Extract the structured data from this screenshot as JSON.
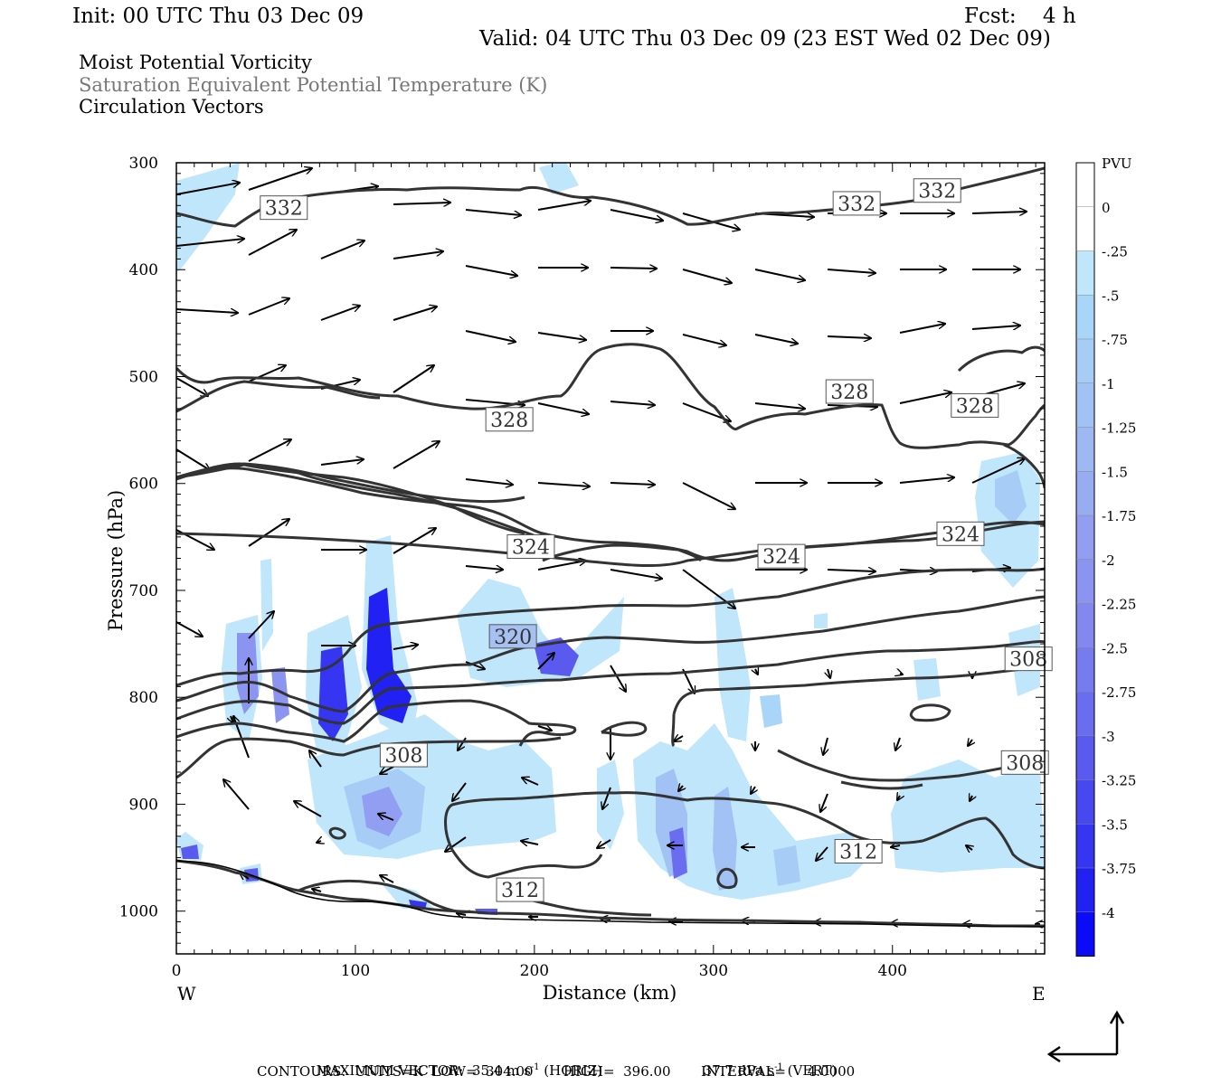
{
  "header": {
    "init": "Init: 00 UTC Thu 03 Dec 09",
    "fcst": "Fcst:    4 h",
    "valid": "Valid: 04 UTC Thu 03 Dec 09 (23 EST Wed 02 Dec 09)"
  },
  "titles": [
    "Moist Potential Vorticity",
    "Saturation Equivalent Potential Temperature (K)",
    "Circulation Vectors"
  ],
  "chart_data": {
    "type": "cross-section",
    "xlabel": "Distance (km)",
    "ylabel": "Pressure (hPa)",
    "xlim": [
      0,
      485
    ],
    "ylim": [
      300,
      1040
    ],
    "x_ticks": [
      0,
      100,
      200,
      300,
      400
    ],
    "y_ticks": [
      300,
      400,
      500,
      600,
      700,
      800,
      900,
      1000
    ],
    "x_endpoints": {
      "left": "W",
      "right": "E"
    },
    "contour_units": "K",
    "contour_labels": [
      {
        "value": "332",
        "x": 60,
        "p": 342
      },
      {
        "value": "332",
        "x": 380,
        "p": 338
      },
      {
        "value": "332",
        "x": 425,
        "p": 326
      },
      {
        "value": "328",
        "x": 186,
        "p": 540
      },
      {
        "value": "328",
        "x": 376,
        "p": 514
      },
      {
        "value": "328",
        "x": 446,
        "p": 527
      },
      {
        "value": "324",
        "x": 198,
        "p": 659
      },
      {
        "value": "324",
        "x": 338,
        "p": 668
      },
      {
        "value": "324",
        "x": 438,
        "p": 647
      },
      {
        "value": "320",
        "x": 188,
        "p": 743
      },
      {
        "value": "308",
        "x": 476,
        "p": 764
      },
      {
        "value": "308",
        "x": 127,
        "p": 854
      },
      {
        "value": "308",
        "x": 474,
        "p": 861
      },
      {
        "value": "312",
        "x": 381,
        "p": 944
      },
      {
        "value": "312",
        "x": 192,
        "p": 980
      }
    ],
    "colorbar": {
      "units": "PVU",
      "labels": [
        "0",
        "-.25",
        "-.5",
        "-.75",
        "-1",
        "-1.25",
        "-1.5",
        "-1.75",
        "-2",
        "-2.25",
        "-2.5",
        "-2.75",
        "-3",
        "-3.25",
        "-3.5",
        "-3.75",
        "-4"
      ],
      "colors": [
        "#ffffff",
        "#ffffff",
        "#bfe6fb",
        "#a9d6f8",
        "#a7cdf6",
        "#a2c1f5",
        "#9eb8f4",
        "#98acf2",
        "#919ef1",
        "#8b94f0",
        "#8288ef",
        "#767bee",
        "#6a6df0",
        "#5a5aef",
        "#4848f0",
        "#3535f2",
        "#2121f4",
        "#0b0bf7"
      ]
    }
  },
  "footer": {
    "max_vector": "MAXIMUM VECTOR:  35.4 m s",
    "max_vector_exp": "-1",
    "horiz": " (HORIZ)",
    "vert_value": "37.7 dPa s",
    "vert_exp": "-1",
    "vert": " (VERT)",
    "contours": "CONTOURS:  UNITS=K  LOW=  304.00       HIGH=  396.00       INTERVAL=     4.0000"
  }
}
